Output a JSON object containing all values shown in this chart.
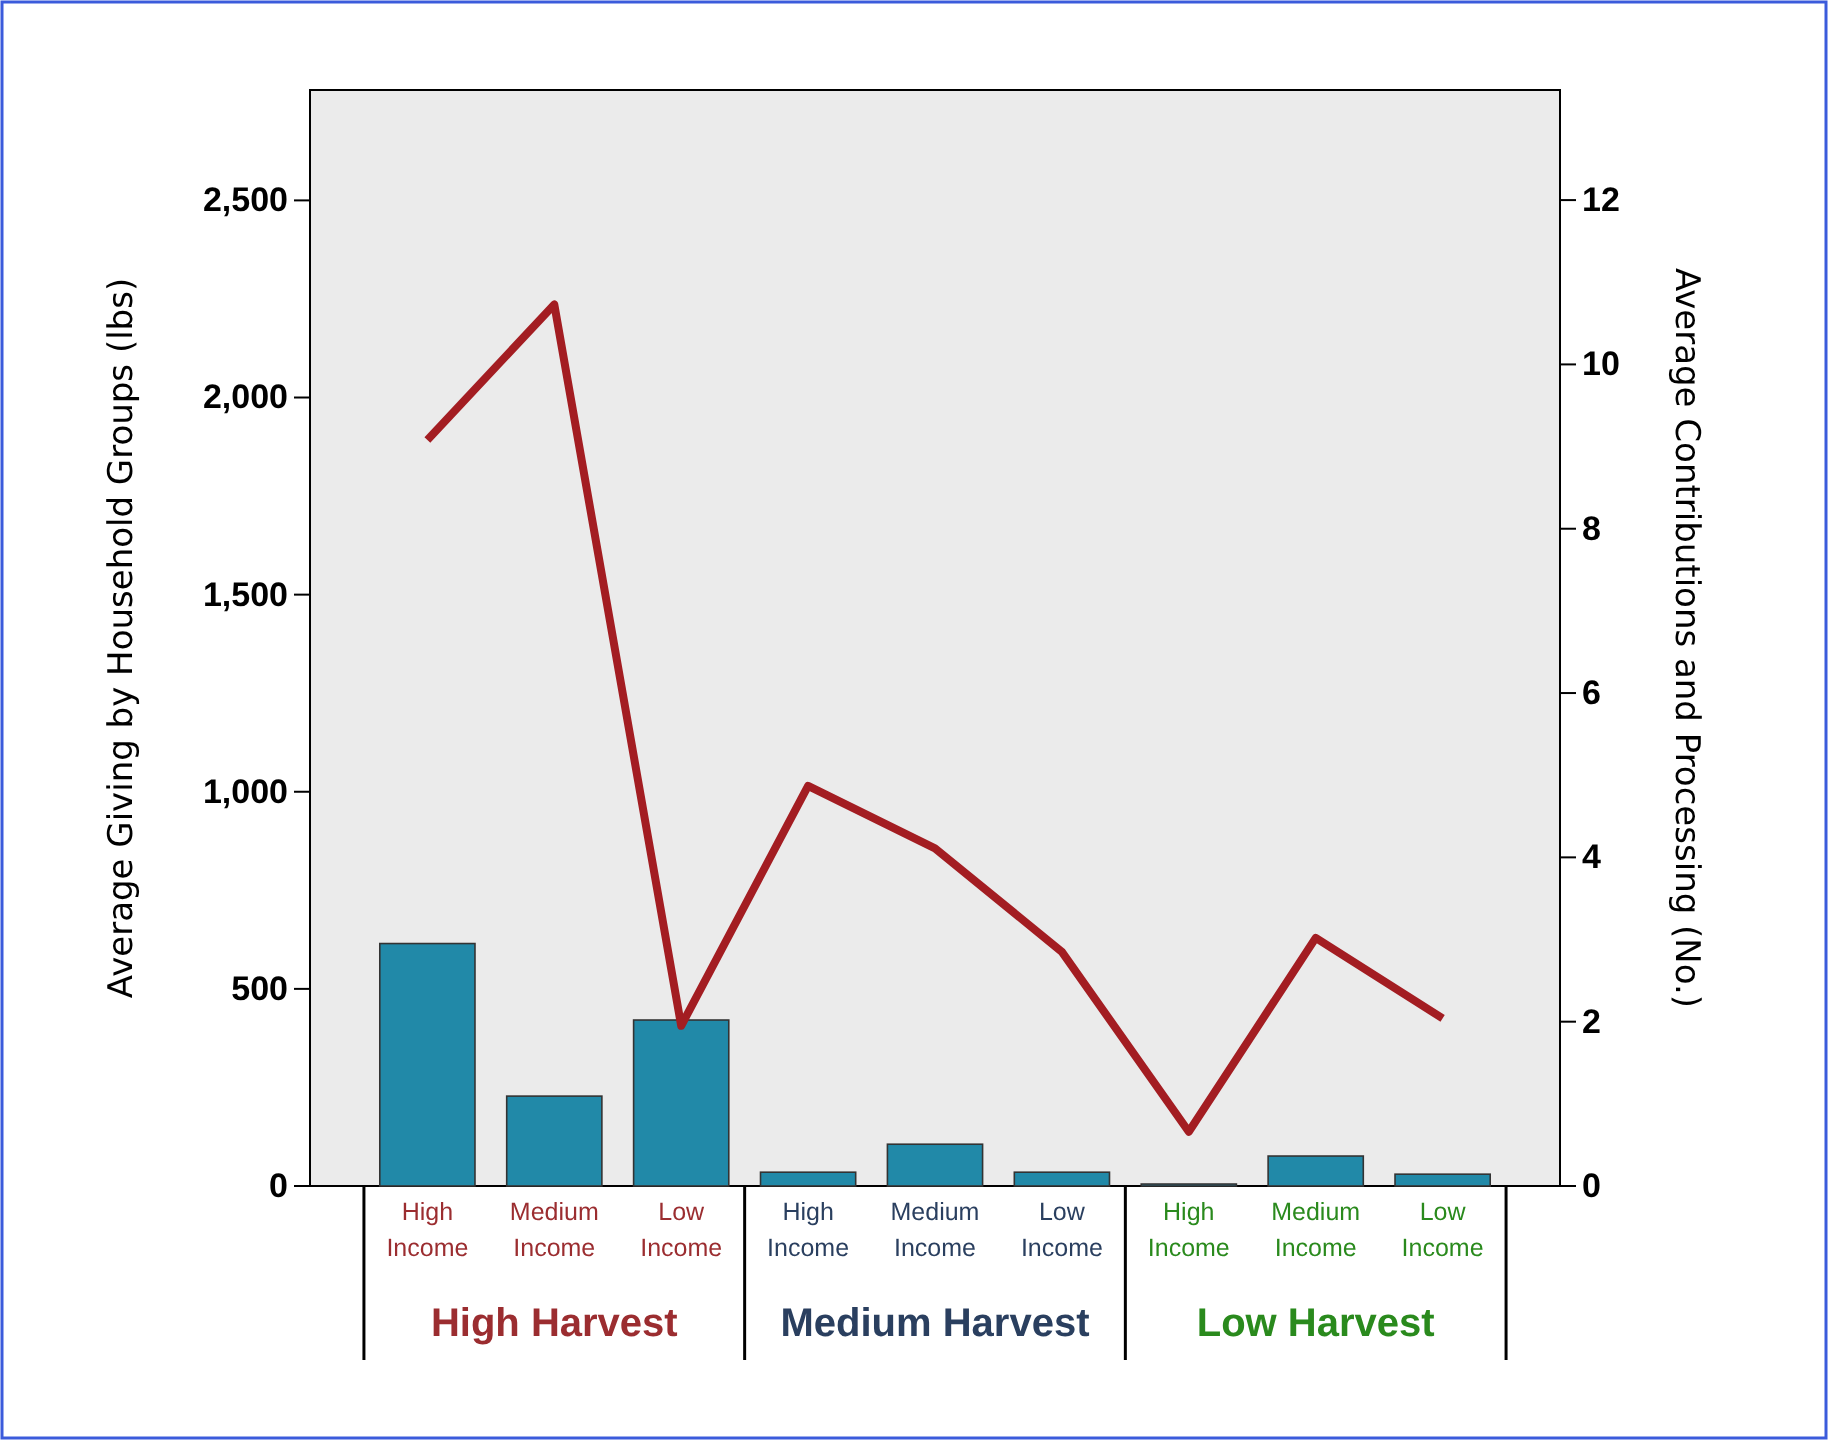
{
  "chart_data": {
    "type": "bar",
    "categories": [
      "High Income",
      "Medium Income",
      "Low Income",
      "High Income",
      "Medium Income",
      "Low Income",
      "High Income",
      "Medium Income",
      "Low Income"
    ],
    "series": [
      {
        "color": "#2189a8",
        "values": [
          615,
          228,
          421,
          35,
          106,
          35,
          5,
          76,
          30
        ]
      },
      {
        "type": "line",
        "axis": "y2",
        "color": "#a31d22",
        "values": [
          9.08,
          10.73,
          1.95,
          4.87,
          4.11,
          2.85,
          0.66,
          3.02,
          2.04
        ]
      }
    ],
    "ylabel": "Average Giving by Household Groups (lbs)",
    "y2label": "Average Contributions and Processing (No.)",
    "ylim": [
      0,
      2780
    ],
    "yticks": [
      {
        "value": 0,
        "label": "0"
      },
      {
        "value": 500,
        "label": "500"
      },
      {
        "value": 1000,
        "label": "1,000"
      },
      {
        "value": 1500,
        "label": "1,500"
      },
      {
        "value": 2000,
        "label": "2,000"
      },
      {
        "value": 2500,
        "label": "2,500"
      }
    ],
    "y2lim": [
      0,
      13.34
    ],
    "y2ticks": [
      0,
      2,
      4,
      6,
      8,
      10,
      12
    ],
    "annotations": [
      "High Harvest",
      "Medium Harvest",
      "Low Harvest"
    ],
    "marker": "none",
    "line_style": "solid",
    "grid": false
  }
}
